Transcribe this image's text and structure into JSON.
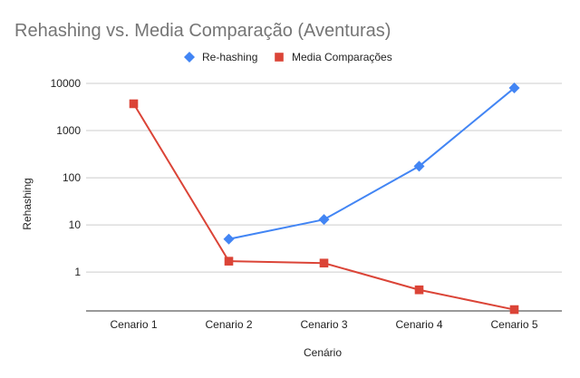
{
  "chart_data": {
    "type": "line",
    "title": "Rehashing vs. Media Comparação (Aventuras)",
    "xlabel": "Cenário",
    "ylabel": "Rehashing",
    "categories": [
      "Cenario 1",
      "Cenario 2",
      "Cenario 3",
      "Cenario 4",
      "Cenario 5"
    ],
    "yscale": "log",
    "ylim": [
      0.15,
      10000
    ],
    "yticks": [
      1,
      10,
      100,
      1000,
      10000
    ],
    "ytick_labels": [
      "1",
      "10",
      "100",
      "1000",
      "10000"
    ],
    "grid": true,
    "legend_position": "top",
    "series": [
      {
        "name": "Re-hashing",
        "color": "#4285f4",
        "marker": "diamond",
        "values": [
          null,
          5,
          13,
          175,
          8000
        ]
      },
      {
        "name": "Media Comparações",
        "color": "#db4437",
        "marker": "square",
        "values": [
          3700,
          1.7,
          1.55,
          0.42,
          0.16
        ]
      }
    ]
  }
}
